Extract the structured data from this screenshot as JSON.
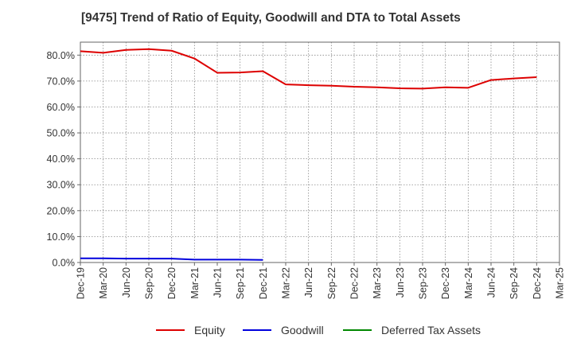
{
  "chart_data": {
    "type": "line",
    "title": "[9475]  Trend of Ratio of Equity, Goodwill and DTA to Total Assets",
    "xlabel": "",
    "ylabel": "",
    "ylim": [
      0,
      85
    ],
    "yticks": [
      0,
      10,
      20,
      30,
      40,
      50,
      60,
      70,
      80
    ],
    "ytick_labels": [
      "0.0%",
      "10.0%",
      "20.0%",
      "30.0%",
      "40.0%",
      "50.0%",
      "60.0%",
      "70.0%",
      "80.0%"
    ],
    "categories": [
      "Dec-19",
      "Mar-20",
      "Jun-20",
      "Sep-20",
      "Dec-20",
      "Mar-21",
      "Jun-21",
      "Sep-21",
      "Dec-21",
      "Mar-22",
      "Jun-22",
      "Sep-22",
      "Dec-22",
      "Mar-23",
      "Jun-23",
      "Sep-23",
      "Dec-23",
      "Mar-24",
      "Jun-24",
      "Sep-24",
      "Dec-24",
      "Mar-25"
    ],
    "grid": true,
    "legend_position": "bottom-center",
    "series": [
      {
        "name": "Equity",
        "color": "#dd0000",
        "values": [
          81.5,
          80.9,
          82.0,
          82.3,
          81.7,
          78.7,
          73.2,
          73.3,
          73.8,
          68.7,
          68.4,
          68.2,
          67.8,
          67.6,
          67.2,
          67.1,
          67.6,
          67.4,
          70.4,
          71.0,
          71.5,
          null
        ]
      },
      {
        "name": "Goodwill",
        "color": "#0000dd",
        "values": [
          1.6,
          1.6,
          1.5,
          1.5,
          1.5,
          1.1,
          1.1,
          1.1,
          1.0,
          null,
          null,
          null,
          null,
          null,
          null,
          null,
          null,
          null,
          null,
          null,
          null,
          null
        ]
      },
      {
        "name": "Deferred Tax Assets",
        "color": "#008800",
        "values": [
          null,
          null,
          null,
          null,
          null,
          null,
          null,
          null,
          null,
          null,
          null,
          null,
          null,
          null,
          null,
          null,
          null,
          null,
          null,
          null,
          null,
          null
        ]
      }
    ]
  }
}
